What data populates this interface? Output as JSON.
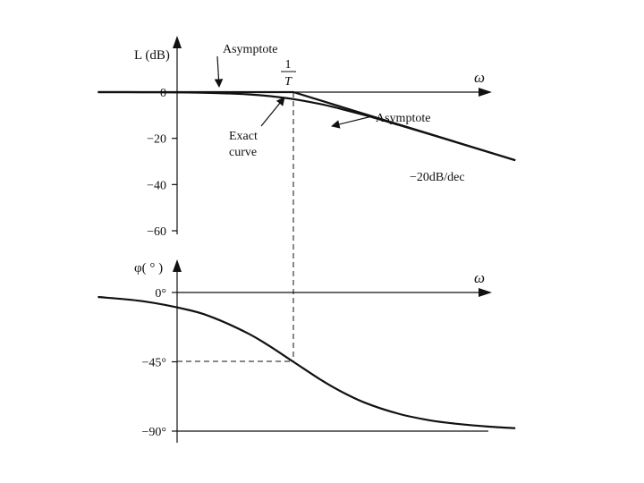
{
  "chart_data": [
    {
      "type": "line",
      "title": "",
      "xlabel": "ω",
      "ylabel": "L (dB)",
      "x_scale": "log",
      "x_unit": "ωT",
      "ylim": [
        -60,
        0
      ],
      "yticks": [
        0,
        -20,
        -40,
        -60
      ],
      "ytick_labels": [
        "0",
        "−20",
        "−40",
        "−60"
      ],
      "corner_label_num": "1",
      "corner_label_den": "T",
      "grid": false,
      "series": [
        {
          "role": "exact",
          "x": [
            0.05,
            0.1,
            0.2,
            0.3,
            0.5,
            0.7,
            1,
            1.5,
            2,
            3,
            5,
            8,
            12,
            20,
            30
          ],
          "y": [
            -0.01,
            -0.04,
            -0.17,
            -0.37,
            -0.97,
            -1.74,
            -3.01,
            -5.12,
            -6.99,
            -10.0,
            -14.15,
            -18.13,
            -21.6,
            -26.0,
            -29.5
          ]
        },
        {
          "role": "asymptote",
          "x": [
            0.05,
            1,
            30
          ],
          "y": [
            0,
            0,
            -29.5
          ]
        }
      ],
      "annotations": [
        {
          "id": "asym_top",
          "text": "Asymptote"
        },
        {
          "id": "asym_right",
          "text": "Asymptote"
        },
        {
          "id": "exact",
          "text_lines": [
            "Exact",
            "curve"
          ]
        },
        {
          "id": "slope",
          "text": "−20dB/dec"
        }
      ]
    },
    {
      "type": "line",
      "title": "",
      "xlabel": "ω",
      "ylabel": "φ( ° )",
      "x_scale": "log",
      "x_unit": "ωT",
      "ylim": [
        -90,
        0
      ],
      "yticks": [
        0,
        -45,
        -90
      ],
      "ytick_labels": [
        "0°",
        "−45°",
        "−90°"
      ],
      "grid": false,
      "series": [
        {
          "role": "phase",
          "x": [
            0.05,
            0.1,
            0.2,
            0.3,
            0.5,
            0.7,
            1,
            1.5,
            2,
            3,
            5,
            8,
            12,
            20,
            30
          ],
          "y": [
            -2.9,
            -5.7,
            -11.3,
            -16.7,
            -26.6,
            -35.0,
            -45.0,
            -56.3,
            -63.4,
            -71.6,
            -78.7,
            -82.9,
            -85.2,
            -87.1,
            -88.1
          ]
        }
      ]
    }
  ]
}
